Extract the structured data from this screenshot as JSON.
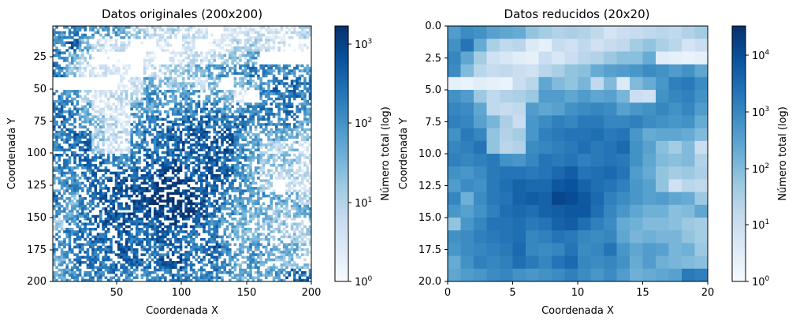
{
  "chart_data": [
    {
      "type": "heatmap",
      "title": "Datos originales (200x200)",
      "xlabel": "Coordenada X",
      "ylabel": "Coordenada Y",
      "xlim": [
        1,
        200
      ],
      "ylim": [
        200,
        1
      ],
      "xticks": [
        "50",
        "100",
        "150",
        "200"
      ],
      "yticks": [
        "25",
        "50",
        "75",
        "100",
        "125",
        "150",
        "175",
        "200"
      ],
      "colorbar": {
        "label": "Número total (log)",
        "scale": "log",
        "range": [
          1,
          1700
        ],
        "ticks": [
          "10^0",
          "10^1",
          "10^2",
          "10^3"
        ]
      },
      "colormap": [
        "#f7fbff",
        "#deebf7",
        "#c6dbef",
        "#9ecae1",
        "#6baed6",
        "#4292c6",
        "#2171b5",
        "#08519c",
        "#08306b"
      ],
      "description_grid_note": "dense road network centered near (80,135); empty region upper-left (lake)"
    },
    {
      "type": "heatmap",
      "title": "Datos reducidos (20x20)",
      "xlabel": "Coordenada X",
      "ylabel": "Coordenada Y",
      "xlim": [
        0,
        20
      ],
      "ylim": [
        20,
        0
      ],
      "xticks": [
        "0",
        "5",
        "10",
        "15",
        "20"
      ],
      "yticks": [
        "0.0",
        "2.5",
        "5.0",
        "7.5",
        "10.0",
        "12.5",
        "15.0",
        "17.5",
        "20.0"
      ],
      "colorbar": {
        "label": "Número total (log)",
        "scale": "log",
        "range": [
          1,
          30000
        ],
        "ticks": [
          "10^0",
          "10^1",
          "10^2",
          "10^3",
          "10^4"
        ]
      },
      "colormap": [
        "#f7fbff",
        "#deebf7",
        "#c6dbef",
        "#9ecae1",
        "#6baed6",
        "#4292c6",
        "#2171b5",
        "#08519c",
        "#08306b"
      ],
      "log_values": [
        [
          2.6,
          2.9,
          2.8,
          2.5,
          2.4,
          2.3,
          1.8,
          1.6,
          1.4,
          1.5,
          1.4,
          1.2,
          0.8,
          1.0,
          1.1,
          1.2,
          1.3,
          1.2,
          1.4,
          1.6
        ],
        [
          2.8,
          3.3,
          2.3,
          1.5,
          1.2,
          1.3,
          0.6,
          0.4,
          1.1,
          0.9,
          1.2,
          0.9,
          1.1,
          1.2,
          1.6,
          1.8,
          1.5,
          1.3,
          0.8,
          1.0
        ],
        [
          3.0,
          2.4,
          1.6,
          0.9,
          0.7,
          0.5,
          0.4,
          1.0,
          0.7,
          1.0,
          1.3,
          1.4,
          1.7,
          1.9,
          1.9,
          2.3,
          0.5,
          0.4,
          0.3,
          0.4
        ],
        [
          2.9,
          2.0,
          1.3,
          1.1,
          1.2,
          1.0,
          0.9,
          1.3,
          1.5,
          1.8,
          1.9,
          2.3,
          2.5,
          2.6,
          2.7,
          2.9,
          2.8,
          2.6,
          2.8,
          2.4
        ],
        [
          0.4,
          0.3,
          0.5,
          0.4,
          0.3,
          1.0,
          1.3,
          2.4,
          2.0,
          1.8,
          2.1,
          1.2,
          2.0,
          0.6,
          2.0,
          2.3,
          2.7,
          3.1,
          3.2,
          2.9
        ],
        [
          2.8,
          2.6,
          1.7,
          1.2,
          1.4,
          1.5,
          1.7,
          2.6,
          2.6,
          2.4,
          2.6,
          2.4,
          2.5,
          2.1,
          1.0,
          0.9,
          2.8,
          3.0,
          3.1,
          2.8
        ],
        [
          3.0,
          2.9,
          2.4,
          1.2,
          1.1,
          1.2,
          2.6,
          2.4,
          2.5,
          2.8,
          2.9,
          3.0,
          2.9,
          2.5,
          2.7,
          2.8,
          3.0,
          2.8,
          3.0,
          2.6
        ],
        [
          3.1,
          3.0,
          2.5,
          2.1,
          1.5,
          1.0,
          2.7,
          2.9,
          3.1,
          3.0,
          3.2,
          3.2,
          3.0,
          3.0,
          3.1,
          2.9,
          2.8,
          2.7,
          2.8,
          2.3
        ],
        [
          2.8,
          3.2,
          3.0,
          1.8,
          1.4,
          1.6,
          2.7,
          3.1,
          3.2,
          3.3,
          3.3,
          3.4,
          3.2,
          3.3,
          2.7,
          2.3,
          2.4,
          2.4,
          2.3,
          2.0
        ],
        [
          3.0,
          3.1,
          3.3,
          1.8,
          1.3,
          1.4,
          2.9,
          3.0,
          3.1,
          3.2,
          3.4,
          3.2,
          3.3,
          3.5,
          2.8,
          2.5,
          1.9,
          1.6,
          2.0,
          1.0
        ],
        [
          3.1,
          3.0,
          3.1,
          3.2,
          2.8,
          2.7,
          3.0,
          3.3,
          3.2,
          3.3,
          3.1,
          3.2,
          3.3,
          3.2,
          2.8,
          2.4,
          2.0,
          1.9,
          2.0,
          1.4
        ],
        [
          2.8,
          2.7,
          2.9,
          3.2,
          3.3,
          3.3,
          3.2,
          3.3,
          3.5,
          3.7,
          3.3,
          3.4,
          3.5,
          3.3,
          2.6,
          2.3,
          1.8,
          1.6,
          1.7,
          1.5
        ],
        [
          2.6,
          2.9,
          2.8,
          3.2,
          3.4,
          3.6,
          3.5,
          3.5,
          3.8,
          3.9,
          3.6,
          3.4,
          3.3,
          3.1,
          2.7,
          2.5,
          1.8,
          0.9,
          1.3,
          1.2
        ],
        [
          3.0,
          2.2,
          2.9,
          3.2,
          3.3,
          3.6,
          3.7,
          3.6,
          4.1,
          4.0,
          3.8,
          3.5,
          3.1,
          2.9,
          2.7,
          2.5,
          2.6,
          2.4,
          2.3,
          1.7
        ],
        [
          2.7,
          2.5,
          2.8,
          3.1,
          3.4,
          3.5,
          3.4,
          3.6,
          3.7,
          3.8,
          3.8,
          3.4,
          3.0,
          2.7,
          2.4,
          2.2,
          2.2,
          1.9,
          2.0,
          2.4
        ],
        [
          1.8,
          2.7,
          3.0,
          3.3,
          3.3,
          3.4,
          3.2,
          3.3,
          3.6,
          3.7,
          3.4,
          3.1,
          2.9,
          2.3,
          2.2,
          2.0,
          2.0,
          1.9,
          1.7,
          1.6
        ],
        [
          2.8,
          2.9,
          3.1,
          3.2,
          3.3,
          3.4,
          3.0,
          3.1,
          3.3,
          3.2,
          3.0,
          2.9,
          3.0,
          2.4,
          2.1,
          2.2,
          2.1,
          2.1,
          1.8,
          1.6
        ],
        [
          2.7,
          2.9,
          3.0,
          3.1,
          3.2,
          3.5,
          3.0,
          2.9,
          3.0,
          3.3,
          2.9,
          3.0,
          3.3,
          2.7,
          2.4,
          2.6,
          2.5,
          2.1,
          2.2,
          1.7
        ],
        [
          2.3,
          2.8,
          3.1,
          3.0,
          3.1,
          3.4,
          3.2,
          3.0,
          3.3,
          3.5,
          3.0,
          2.9,
          3.0,
          2.8,
          2.3,
          2.6,
          2.2,
          2.1,
          2.0,
          1.9
        ],
        [
          2.4,
          2.6,
          2.7,
          2.9,
          3.0,
          2.8,
          2.7,
          2.8,
          2.9,
          3.1,
          2.9,
          2.7,
          2.9,
          2.6,
          2.2,
          2.3,
          2.4,
          2.5,
          3.2,
          3.1
        ]
      ]
    }
  ]
}
